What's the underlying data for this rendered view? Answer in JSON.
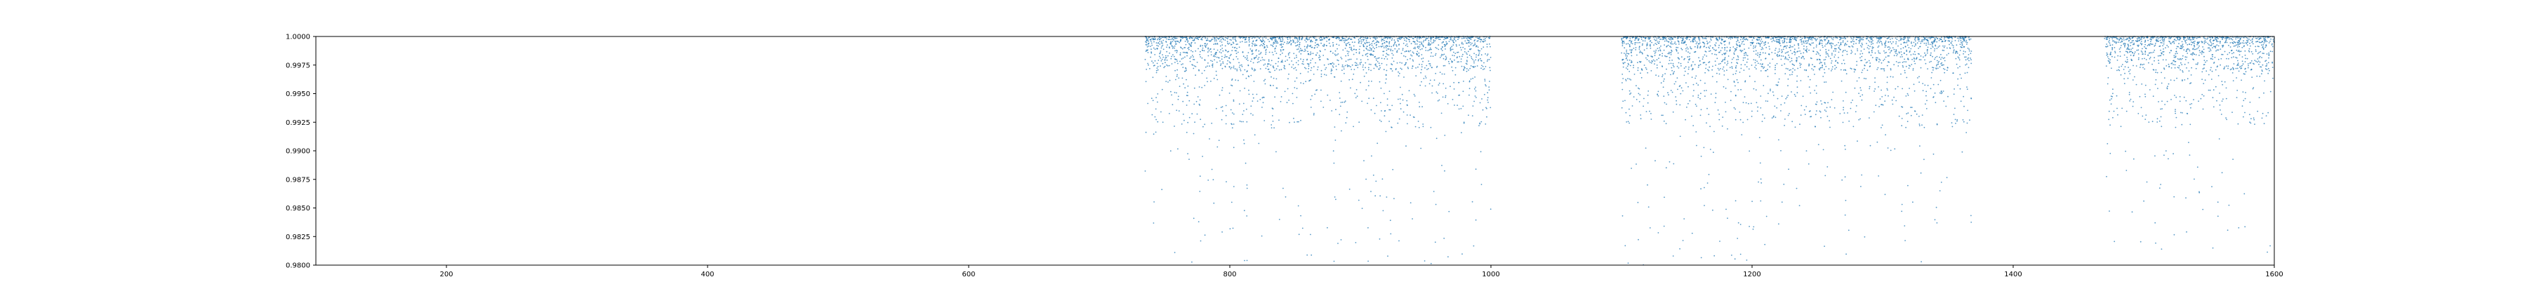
{
  "chart_data": {
    "type": "scatter",
    "title": "",
    "xlabel": "",
    "ylabel": "",
    "xlim": [
      100,
      1600
    ],
    "ylim": [
      0.98,
      1.0
    ],
    "x_ticks": [
      200,
      400,
      600,
      800,
      1000,
      1200,
      1400,
      1600
    ],
    "x_tick_labels": [
      "200",
      "400",
      "600",
      "800",
      "1000",
      "1200",
      "1400",
      "1600"
    ],
    "y_ticks": [
      0.98,
      0.9825,
      0.985,
      0.9875,
      0.99,
      0.9925,
      0.995,
      0.9975,
      1.0
    ],
    "y_tick_labels": [
      "0.9800",
      "0.9825",
      "0.9850",
      "0.9875",
      "0.9900",
      "0.9925",
      "0.9950",
      "0.9975",
      "1.0000"
    ],
    "grid": false,
    "legend": "none",
    "marker_color": "#1f77b4",
    "series": [
      {
        "segments": [
          {
            "x_start": 735,
            "x_end": 1000,
            "y_min": 0.98
          },
          {
            "x_start": 1100,
            "x_end": 1368,
            "y_min": 0.98
          },
          {
            "x_start": 1470,
            "x_end": 1600,
            "y_min": 0.981
          }
        ],
        "y_max": 1.0,
        "note_free": true
      }
    ]
  }
}
